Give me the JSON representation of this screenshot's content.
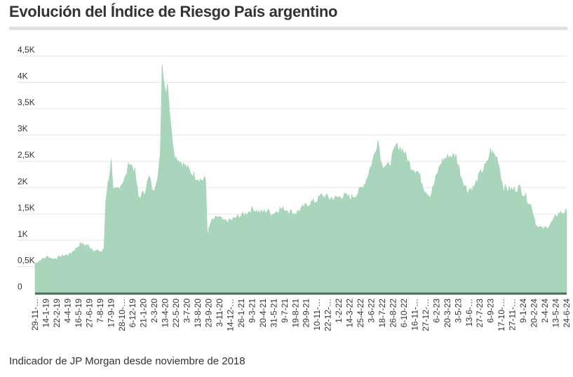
{
  "title": "Evolución del Índice de Riesgo País argentino",
  "note": "Indicador de JP Morgan desde noviembre de 2018",
  "colors": {
    "fill": "#a9d6bb",
    "stroke": "#9bcfb0",
    "grid": "#e6e6e6",
    "axis": "#4a6b55"
  },
  "chart_data": {
    "type": "area",
    "title": "Evolución del Índice de Riesgo País argentino",
    "xlabel": "",
    "ylabel": "",
    "ylim": [
      0,
      4500
    ],
    "yticks": [
      {
        "v": 0,
        "label": "0"
      },
      {
        "v": 500,
        "label": "0,5K"
      },
      {
        "v": 1000,
        "label": "1K"
      },
      {
        "v": 1500,
        "label": "1,5K"
      },
      {
        "v": 2000,
        "label": "2K"
      },
      {
        "v": 2500,
        "label": "2,5K"
      },
      {
        "v": 3000,
        "label": "3K"
      },
      {
        "v": 3500,
        "label": "3,5K"
      },
      {
        "v": 4000,
        "label": "4K"
      },
      {
        "v": 4500,
        "label": "4,5K"
      }
    ],
    "xlim_weeks": [
      0,
      293
    ],
    "xtick_labels": [
      "29-11-…",
      "14-1-19",
      "22-2-19",
      "4-4-19",
      "16-5-19",
      "27-6-19",
      "7-8-19",
      "17-9-19",
      "28-10-…",
      "6-12-19",
      "21-1-20",
      "2-3-20",
      "13-4-20",
      "22-5-20",
      "3-7-20",
      "13-8-20",
      "23-9-20",
      "3-11-20",
      "14-12-…",
      "26-1-21",
      "9-3-21",
      "20-4-21",
      "31-5-21",
      "9-7-21",
      "19-8-21",
      "29-9-21",
      "10-11-…",
      "22-12-…",
      "1-2-22",
      "14-3-22",
      "25-4-22",
      "3-6-22",
      "18-7-22",
      "26-8-22",
      "6-10-22",
      "16-11-…",
      "27-12-…",
      "6-2-23",
      "20-3-23",
      "3-5-23",
      "13-6-…",
      "27-7-23",
      "6-9-23",
      "17-10-…",
      "27-11-…",
      "9-1-24",
      "20-2-24",
      "2-4-24",
      "13-5-24",
      "24-6-24"
    ],
    "points_week_value": [
      [
        0,
        560
      ],
      [
        4,
        640
      ],
      [
        7,
        690
      ],
      [
        10,
        640
      ],
      [
        15,
        700
      ],
      [
        19,
        730
      ],
      [
        23,
        860
      ],
      [
        25,
        930
      ],
      [
        29,
        900
      ],
      [
        33,
        800
      ],
      [
        37,
        780
      ],
      [
        38,
        850
      ],
      [
        39,
        1800
      ],
      [
        42,
        2500
      ],
      [
        43,
        1900
      ],
      [
        46,
        2000
      ],
      [
        50,
        2200
      ],
      [
        52,
        2500
      ],
      [
        55,
        2300
      ],
      [
        57,
        1800
      ],
      [
        60,
        1900
      ],
      [
        63,
        2200
      ],
      [
        65,
        1900
      ],
      [
        68,
        2300
      ],
      [
        69,
        2600
      ],
      [
        70,
        4350
      ],
      [
        72,
        3800
      ],
      [
        73,
        4000
      ],
      [
        75,
        3100
      ],
      [
        77,
        2600
      ],
      [
        80,
        2500
      ],
      [
        83,
        2400
      ],
      [
        87,
        2250
      ],
      [
        91,
        2150
      ],
      [
        94,
        2150
      ],
      [
        95,
        1100
      ],
      [
        97,
        1350
      ],
      [
        101,
        1450
      ],
      [
        104,
        1350
      ],
      [
        108,
        1380
      ],
      [
        112,
        1450
      ],
      [
        116,
        1500
      ],
      [
        120,
        1600
      ],
      [
        124,
        1520
      ],
      [
        128,
        1560
      ],
      [
        131,
        1500
      ],
      [
        135,
        1600
      ],
      [
        139,
        1580
      ],
      [
        143,
        1500
      ],
      [
        147,
        1600
      ],
      [
        151,
        1700
      ],
      [
        155,
        1750
      ],
      [
        158,
        1850
      ],
      [
        162,
        1800
      ],
      [
        166,
        1800
      ],
      [
        170,
        1850
      ],
      [
        174,
        1800
      ],
      [
        178,
        1900
      ],
      [
        182,
        2100
      ],
      [
        186,
        2500
      ],
      [
        189,
        2900
      ],
      [
        191,
        2450
      ],
      [
        195,
        2400
      ],
      [
        199,
        2800
      ],
      [
        203,
        2700
      ],
      [
        207,
        2400
      ],
      [
        211,
        2300
      ],
      [
        215,
        1950
      ],
      [
        218,
        1850
      ],
      [
        222,
        2300
      ],
      [
        224,
        2500
      ],
      [
        228,
        2600
      ],
      [
        232,
        2600
      ],
      [
        235,
        2200
      ],
      [
        238,
        1950
      ],
      [
        242,
        2000
      ],
      [
        245,
        2250
      ],
      [
        249,
        2450
      ],
      [
        251,
        2700
      ],
      [
        255,
        2550
      ],
      [
        258,
        2000
      ],
      [
        263,
        1950
      ],
      [
        267,
        2000
      ],
      [
        271,
        1800
      ],
      [
        274,
        1600
      ],
      [
        276,
        1300
      ],
      [
        280,
        1200
      ],
      [
        284,
        1300
      ],
      [
        288,
        1500
      ],
      [
        293,
        1550
      ]
    ]
  }
}
